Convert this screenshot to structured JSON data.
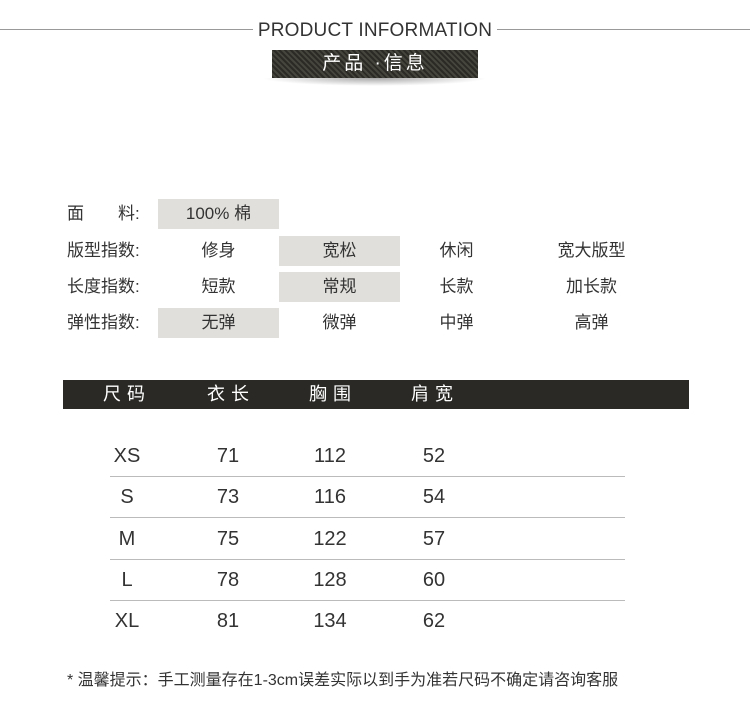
{
  "header": {
    "title_en": "PRODUCT INFORMATION",
    "title_cn": "产品 ·信息"
  },
  "attributes": [
    {
      "label": "面　　料:",
      "options": [
        "100% 棉"
      ],
      "selected": 0
    },
    {
      "label": "版型指数:",
      "options": [
        "修身",
        "宽松",
        "休闲",
        "宽大版型"
      ],
      "selected": 1
    },
    {
      "label": "长度指数:",
      "options": [
        "短款",
        "常规",
        "长款",
        "加长款"
      ],
      "selected": 1
    },
    {
      "label": "弹性指数:",
      "options": [
        "无弹",
        "微弹",
        "中弹",
        "高弹"
      ],
      "selected": 0
    }
  ],
  "size_table": {
    "headers": [
      "尺码",
      "衣长",
      "胸围",
      "肩宽"
    ],
    "rows": [
      [
        "XS",
        "71",
        "112",
        "52"
      ],
      [
        "S",
        "73",
        "116",
        "54"
      ],
      [
        "M",
        "75",
        "122",
        "57"
      ],
      [
        "L",
        "78",
        "128",
        "60"
      ],
      [
        "XL",
        "81",
        "134",
        "62"
      ]
    ]
  },
  "note": "* 温馨提示：手工测量存在1-3cm误差实际以到手为准若尺码不确定请咨询客服",
  "colors": {
    "highlight": "#e0dfdb",
    "header_bar": "#2a2925"
  }
}
